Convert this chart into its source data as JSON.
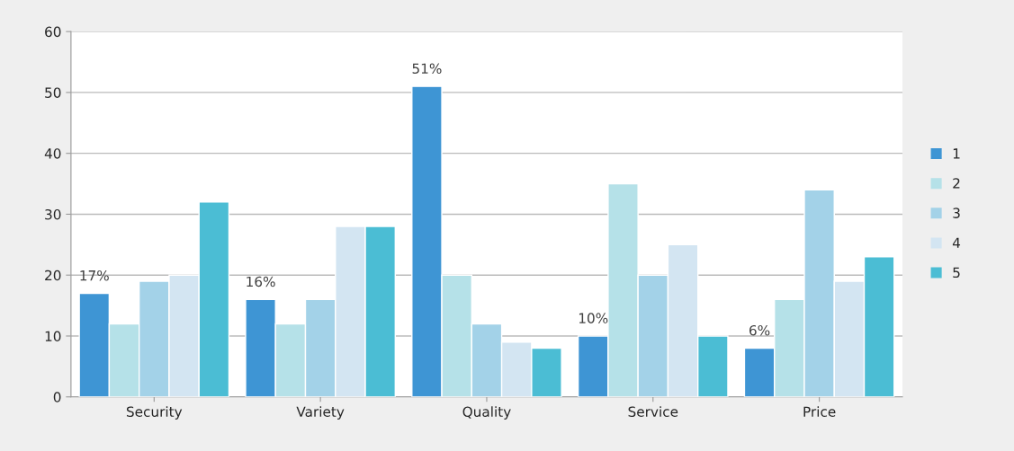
{
  "chart_data": {
    "type": "bar",
    "categories": [
      "Security",
      "Variety",
      "Quality",
      "Service",
      "Price"
    ],
    "series": [
      {
        "name": "1",
        "color": "#3e95d4",
        "values": [
          17,
          16,
          51,
          10,
          8
        ]
      },
      {
        "name": "2",
        "color": "#b5e1e8",
        "values": [
          12,
          12,
          20,
          35,
          16
        ]
      },
      {
        "name": "3",
        "color": "#a3d2e8",
        "values": [
          19,
          16,
          12,
          20,
          34
        ]
      },
      {
        "name": "4",
        "color": "#d3e5f2",
        "values": [
          20,
          28,
          9,
          25,
          19
        ]
      },
      {
        "name": "5",
        "color": "#4bbdd4",
        "values": [
          32,
          28,
          8,
          10,
          23
        ]
      }
    ],
    "annotations": [
      "17%",
      "16%",
      "51%",
      "10%",
      "6%"
    ],
    "ylim": [
      0,
      60
    ],
    "yticks": [
      0,
      10,
      20,
      30,
      40,
      50,
      60
    ],
    "grid": "y",
    "legend": "right"
  }
}
